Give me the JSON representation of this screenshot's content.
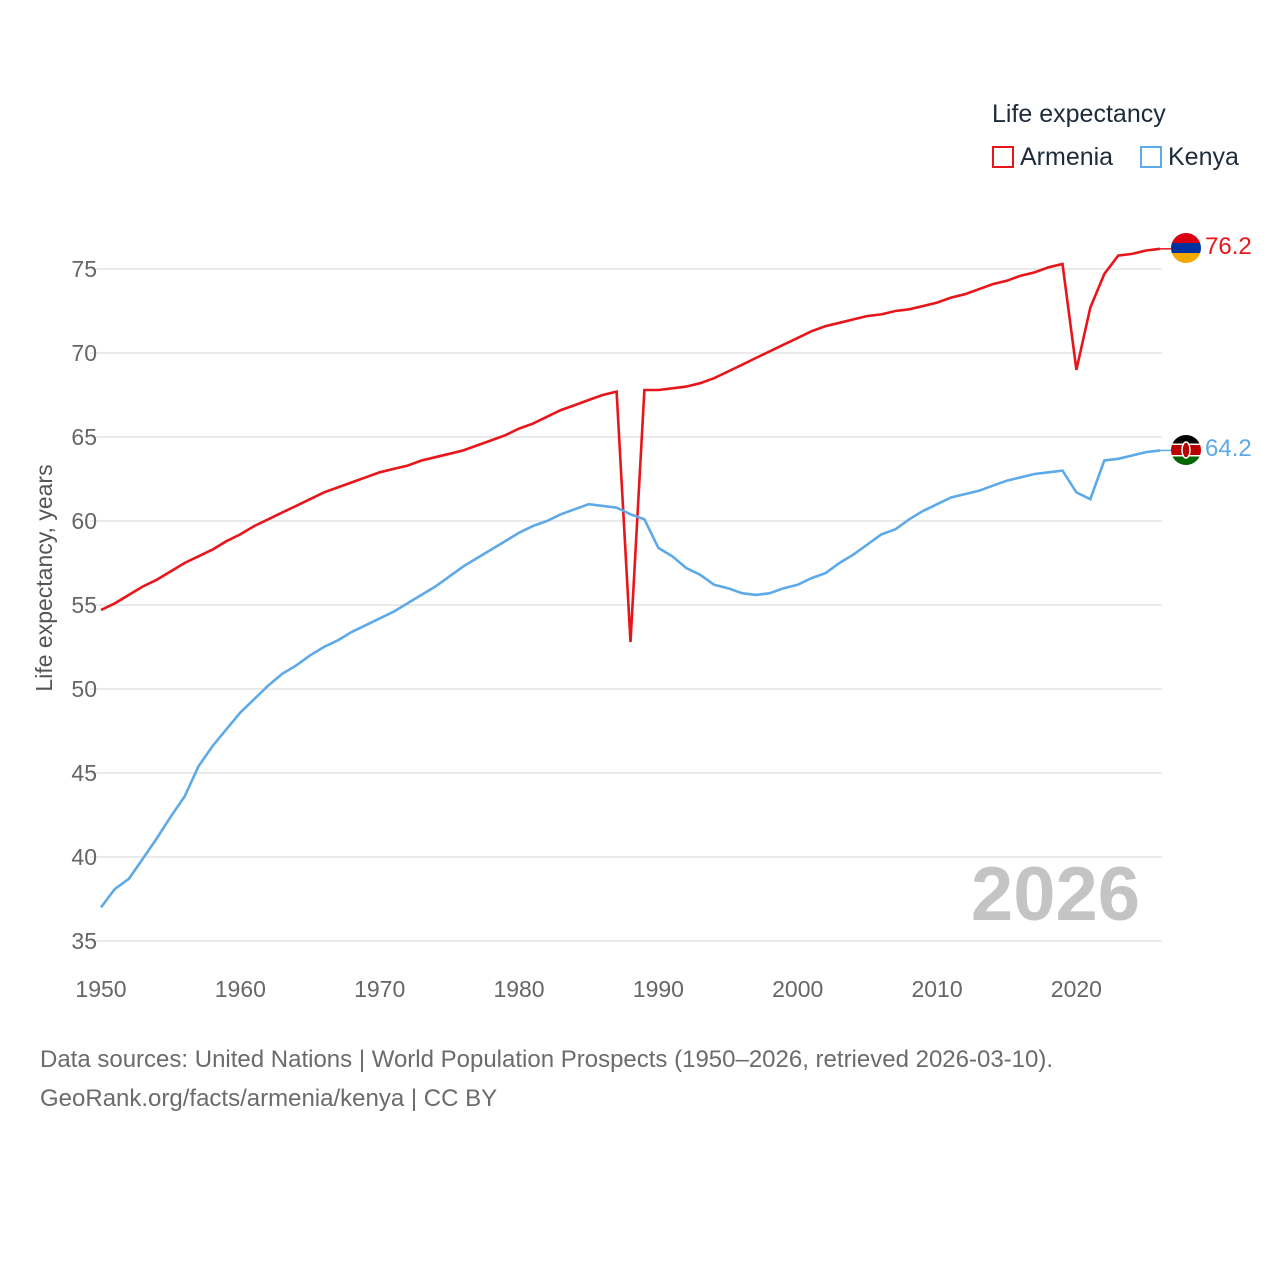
{
  "legend": {
    "title": "Life expectancy",
    "items": [
      {
        "label": "Armenia",
        "color": "#e8161b"
      },
      {
        "label": "Kenya",
        "color": "#5ea9e8"
      }
    ]
  },
  "year_watermark": "2026",
  "footer": {
    "sources": "Data sources: United Nations | World Population Prospects (1950–2026, retrieved 2026-03-10).",
    "credit": "GeoRank.org/facts/armenia/kenya | CC BY"
  },
  "chart_data": {
    "type": "line",
    "title": "Life expectancy",
    "xlabel": "",
    "ylabel": "Life expectancy, years",
    "xlim": [
      1950,
      2026
    ],
    "ylim": [
      35,
      77
    ],
    "x_ticks": [
      1950,
      1960,
      1970,
      1980,
      1990,
      2000,
      2010,
      2020
    ],
    "y_ticks": [
      35,
      40,
      45,
      50,
      55,
      60,
      65,
      70,
      75
    ],
    "grid": true,
    "legend_position": "top-right",
    "series": [
      {
        "name": "Armenia",
        "color": "#e8161b",
        "end_label": "76.2",
        "flag": "armenia",
        "points": [
          [
            1950,
            54.7
          ],
          [
            1951,
            55.1
          ],
          [
            1952,
            55.6
          ],
          [
            1953,
            56.1
          ],
          [
            1954,
            56.5
          ],
          [
            1955,
            57.0
          ],
          [
            1956,
            57.5
          ],
          [
            1957,
            57.9
          ],
          [
            1958,
            58.3
          ],
          [
            1959,
            58.8
          ],
          [
            1960,
            59.2
          ],
          [
            1961,
            59.7
          ],
          [
            1962,
            60.1
          ],
          [
            1963,
            60.5
          ],
          [
            1964,
            60.9
          ],
          [
            1965,
            61.3
          ],
          [
            1966,
            61.7
          ],
          [
            1967,
            62.0
          ],
          [
            1968,
            62.3
          ],
          [
            1969,
            62.6
          ],
          [
            1970,
            62.9
          ],
          [
            1971,
            63.1
          ],
          [
            1972,
            63.3
          ],
          [
            1973,
            63.6
          ],
          [
            1974,
            63.8
          ],
          [
            1975,
            64.0
          ],
          [
            1976,
            64.2
          ],
          [
            1977,
            64.5
          ],
          [
            1978,
            64.8
          ],
          [
            1979,
            65.1
          ],
          [
            1980,
            65.5
          ],
          [
            1981,
            65.8
          ],
          [
            1982,
            66.2
          ],
          [
            1983,
            66.6
          ],
          [
            1984,
            66.9
          ],
          [
            1985,
            67.2
          ],
          [
            1986,
            67.5
          ],
          [
            1987,
            67.7
          ],
          [
            1988,
            52.8
          ],
          [
            1989,
            67.8
          ],
          [
            1990,
            67.8
          ],
          [
            1991,
            67.9
          ],
          [
            1992,
            68.0
          ],
          [
            1993,
            68.2
          ],
          [
            1994,
            68.5
          ],
          [
            1995,
            68.9
          ],
          [
            1996,
            69.3
          ],
          [
            1997,
            69.7
          ],
          [
            1998,
            70.1
          ],
          [
            1999,
            70.5
          ],
          [
            2000,
            70.9
          ],
          [
            2001,
            71.3
          ],
          [
            2002,
            71.6
          ],
          [
            2003,
            71.8
          ],
          [
            2004,
            72.0
          ],
          [
            2005,
            72.2
          ],
          [
            2006,
            72.3
          ],
          [
            2007,
            72.5
          ],
          [
            2008,
            72.6
          ],
          [
            2009,
            72.8
          ],
          [
            2010,
            73.0
          ],
          [
            2011,
            73.3
          ],
          [
            2012,
            73.5
          ],
          [
            2013,
            73.8
          ],
          [
            2014,
            74.1
          ],
          [
            2015,
            74.3
          ],
          [
            2016,
            74.6
          ],
          [
            2017,
            74.8
          ],
          [
            2018,
            75.1
          ],
          [
            2019,
            75.3
          ],
          [
            2020,
            69.0
          ],
          [
            2021,
            72.7
          ],
          [
            2022,
            74.7
          ],
          [
            2023,
            75.8
          ],
          [
            2024,
            75.9
          ],
          [
            2025,
            76.1
          ],
          [
            2026,
            76.2
          ]
        ]
      },
      {
        "name": "Kenya",
        "color": "#5ea9e8",
        "end_label": "64.2",
        "flag": "kenya",
        "points": [
          [
            1950,
            37.0
          ],
          [
            1951,
            38.1
          ],
          [
            1952,
            38.7
          ],
          [
            1953,
            39.9
          ],
          [
            1954,
            41.1
          ],
          [
            1955,
            42.4
          ],
          [
            1956,
            43.6
          ],
          [
            1957,
            45.4
          ],
          [
            1958,
            46.6
          ],
          [
            1959,
            47.6
          ],
          [
            1960,
            48.6
          ],
          [
            1961,
            49.4
          ],
          [
            1962,
            50.2
          ],
          [
            1963,
            50.9
          ],
          [
            1964,
            51.4
          ],
          [
            1965,
            52.0
          ],
          [
            1966,
            52.5
          ],
          [
            1967,
            52.9
          ],
          [
            1968,
            53.4
          ],
          [
            1969,
            53.8
          ],
          [
            1970,
            54.2
          ],
          [
            1971,
            54.6
          ],
          [
            1972,
            55.1
          ],
          [
            1973,
            55.6
          ],
          [
            1974,
            56.1
          ],
          [
            1975,
            56.7
          ],
          [
            1976,
            57.3
          ],
          [
            1977,
            57.8
          ],
          [
            1978,
            58.3
          ],
          [
            1979,
            58.8
          ],
          [
            1980,
            59.3
          ],
          [
            1981,
            59.7
          ],
          [
            1982,
            60.0
          ],
          [
            1983,
            60.4
          ],
          [
            1984,
            60.7
          ],
          [
            1985,
            61.0
          ],
          [
            1986,
            60.9
          ],
          [
            1987,
            60.8
          ],
          [
            1988,
            60.4
          ],
          [
            1989,
            60.1
          ],
          [
            1990,
            58.4
          ],
          [
            1991,
            57.9
          ],
          [
            1992,
            57.2
          ],
          [
            1993,
            56.8
          ],
          [
            1994,
            56.2
          ],
          [
            1995,
            56.0
          ],
          [
            1996,
            55.7
          ],
          [
            1997,
            55.6
          ],
          [
            1998,
            55.7
          ],
          [
            1999,
            56.0
          ],
          [
            2000,
            56.2
          ],
          [
            2001,
            56.6
          ],
          [
            2002,
            56.9
          ],
          [
            2003,
            57.5
          ],
          [
            2004,
            58.0
          ],
          [
            2005,
            58.6
          ],
          [
            2006,
            59.2
          ],
          [
            2007,
            59.5
          ],
          [
            2008,
            60.1
          ],
          [
            2009,
            60.6
          ],
          [
            2010,
            61.0
          ],
          [
            2011,
            61.4
          ],
          [
            2012,
            61.6
          ],
          [
            2013,
            61.8
          ],
          [
            2014,
            62.1
          ],
          [
            2015,
            62.4
          ],
          [
            2016,
            62.6
          ],
          [
            2017,
            62.8
          ],
          [
            2018,
            62.9
          ],
          [
            2019,
            63.0
          ],
          [
            2020,
            61.7
          ],
          [
            2021,
            61.3
          ],
          [
            2022,
            63.6
          ],
          [
            2023,
            63.7
          ],
          [
            2024,
            63.9
          ],
          [
            2025,
            64.1
          ],
          [
            2026,
            64.2
          ]
        ]
      }
    ]
  }
}
